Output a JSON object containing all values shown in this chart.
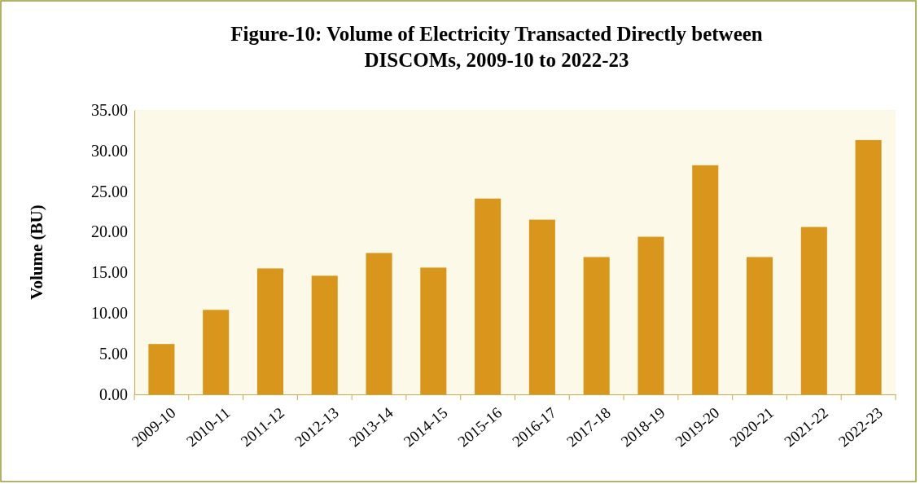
{
  "chart_data": {
    "type": "bar",
    "title": "Figure-10: Volume of Electricity Transacted Directly between DISCOMs, 2009-10 to 2022-23",
    "ylabel": "Volume (BU)",
    "categories": [
      "2009-10",
      "2010-11",
      "2011-12",
      "2012-13",
      "2013-14",
      "2014-15",
      "2015-16",
      "2016-17",
      "2017-18",
      "2018-19",
      "2019-20",
      "2020-21",
      "2021-22",
      "2022-23"
    ],
    "values": [
      6.2,
      10.4,
      15.5,
      14.6,
      17.4,
      15.6,
      24.1,
      21.5,
      16.9,
      19.4,
      28.2,
      16.9,
      20.6,
      31.3
    ],
    "color": "#d9961c",
    "ylim": [
      0,
      35
    ],
    "yticks": [
      {
        "value": 0,
        "label": "0.00"
      },
      {
        "value": 5,
        "label": "5.00"
      },
      {
        "value": 10,
        "label": "10.00"
      },
      {
        "value": 15,
        "label": "15.00"
      },
      {
        "value": 20,
        "label": "20.00"
      },
      {
        "value": 25,
        "label": "25.00"
      },
      {
        "value": 30,
        "label": "30.00"
      },
      {
        "value": 35,
        "label": "35.00"
      }
    ],
    "grid": false
  }
}
